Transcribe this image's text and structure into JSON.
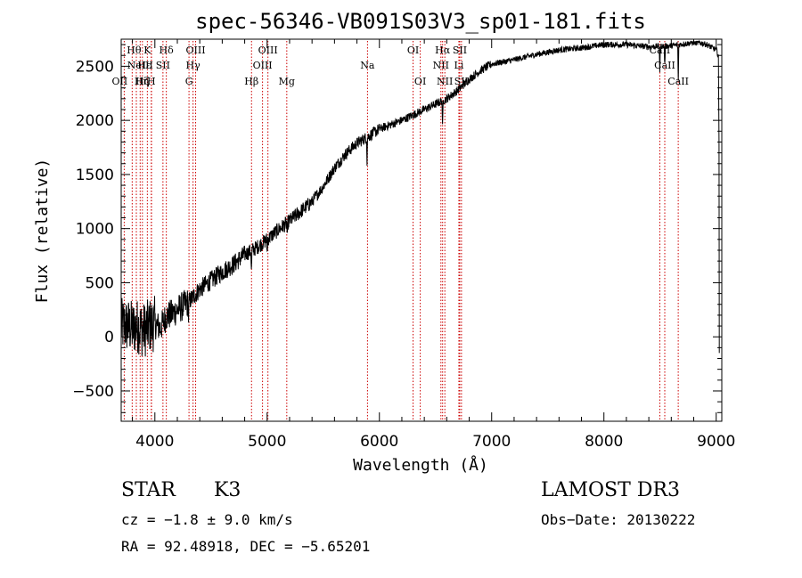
{
  "chart_data": {
    "type": "line",
    "title": "spec-56346-VB091S03V3_sp01-181.fits",
    "xlabel": "Wavelength (Å)",
    "ylabel": "Flux (relative)",
    "xlim": [
      3700,
      9050
    ],
    "ylim": [
      -780,
      2750
    ],
    "xticks": [
      4000,
      5000,
      6000,
      7000,
      8000,
      9000
    ],
    "yticks": [
      -500,
      0,
      500,
      1000,
      1500,
      2000,
      2500
    ],
    "line_color": "#000000",
    "marker_color": "#cc0000",
    "spectrum_anchors": [
      [
        3700,
        100
      ],
      [
        3760,
        100
      ],
      [
        3800,
        80
      ],
      [
        3850,
        100
      ],
      [
        3900,
        60
      ],
      [
        3950,
        100
      ],
      [
        4000,
        120
      ],
      [
        4050,
        80
      ],
      [
        4100,
        190
      ],
      [
        4150,
        210
      ],
      [
        4200,
        250
      ],
      [
        4300,
        320
      ],
      [
        4400,
        440
      ],
      [
        4500,
        520
      ],
      [
        4600,
        600
      ],
      [
        4700,
        670
      ],
      [
        4800,
        760
      ],
      [
        4900,
        820
      ],
      [
        5000,
        900
      ],
      [
        5100,
        990
      ],
      [
        5200,
        1070
      ],
      [
        5300,
        1160
      ],
      [
        5400,
        1250
      ],
      [
        5500,
        1390
      ],
      [
        5600,
        1560
      ],
      [
        5700,
        1690
      ],
      [
        5800,
        1790
      ],
      [
        5900,
        1850
      ],
      [
        6000,
        1920
      ],
      [
        6100,
        1960
      ],
      [
        6200,
        2000
      ],
      [
        6300,
        2050
      ],
      [
        6400,
        2100
      ],
      [
        6500,
        2150
      ],
      [
        6600,
        2200
      ],
      [
        6700,
        2280
      ],
      [
        6800,
        2380
      ],
      [
        6900,
        2460
      ],
      [
        7000,
        2520
      ],
      [
        7200,
        2560
      ],
      [
        7400,
        2610
      ],
      [
        7600,
        2650
      ],
      [
        7800,
        2670
      ],
      [
        8000,
        2700
      ],
      [
        8200,
        2700
      ],
      [
        8400,
        2680
      ],
      [
        8600,
        2690
      ],
      [
        8800,
        2720
      ],
      [
        8900,
        2710
      ],
      [
        9000,
        2650
      ],
      [
        9020,
        2600
      ]
    ],
    "absorption_dips": [
      [
        4300,
        150
      ],
      [
        4860,
        200
      ],
      [
        5000,
        120
      ],
      [
        5180,
        160
      ],
      [
        5890,
        220
      ],
      [
        6563,
        280
      ],
      [
        8498,
        260
      ],
      [
        8542,
        200
      ],
      [
        8662,
        380
      ]
    ],
    "lines": [
      {
        "wavelength": 3727,
        "label": "OII",
        "row": 3,
        "dx": -5
      },
      {
        "wavelength": 3798,
        "label": "Hθ",
        "row": 1,
        "dx": 2
      },
      {
        "wavelength": 3835,
        "label": "Hη",
        "row": 3,
        "dx": 6
      },
      {
        "wavelength": 3869,
        "label": "NeIII",
        "row": 2,
        "dx": 0
      },
      {
        "wavelength": 3889,
        "label": "Hζ",
        "row": 3,
        "dx": 0
      },
      {
        "wavelength": 3933,
        "label": "K",
        "row": 1,
        "dx": 0
      },
      {
        "wavelength": 3968,
        "label": "H",
        "row": 3,
        "dx": 0
      },
      {
        "wavelength": 3970,
        "label": "Hε",
        "row": 2,
        "dx": -8
      },
      {
        "wavelength": 4072,
        "label": "SII",
        "row": 2,
        "dx": 0
      },
      {
        "wavelength": 4102,
        "label": "Hδ",
        "row": 1,
        "dx": 0
      },
      {
        "wavelength": 4304,
        "label": "G",
        "row": 3,
        "dx": 0
      },
      {
        "wavelength": 4340,
        "label": "Hγ",
        "row": 2,
        "dx": 0
      },
      {
        "wavelength": 4363,
        "label": "OIII",
        "row": 1,
        "dx": 0
      },
      {
        "wavelength": 4861,
        "label": "Hβ",
        "row": 3,
        "dx": 0
      },
      {
        "wavelength": 4959,
        "label": "OIII",
        "row": 2,
        "dx": 0
      },
      {
        "wavelength": 5007,
        "label": "OIII",
        "row": 1,
        "dx": 0
      },
      {
        "wavelength": 5175,
        "label": "Mg",
        "row": 3,
        "dx": 0
      },
      {
        "wavelength": 5894,
        "label": "Na",
        "row": 2,
        "dx": 0
      },
      {
        "wavelength": 6300,
        "label": "OI",
        "row": 1,
        "dx": 0
      },
      {
        "wavelength": 6364,
        "label": "OI",
        "row": 3,
        "dx": 0
      },
      {
        "wavelength": 6548,
        "label": "NII",
        "row": 2,
        "dx": 0
      },
      {
        "wavelength": 6563,
        "label": "Hα",
        "row": 1,
        "dx": 0
      },
      {
        "wavelength": 6583,
        "label": "NII",
        "row": 3,
        "dx": 0
      },
      {
        "wavelength": 6708,
        "label": "Li",
        "row": 2,
        "dx": 0
      },
      {
        "wavelength": 6716,
        "label": "SII",
        "row": 1,
        "dx": 0
      },
      {
        "wavelength": 6731,
        "label": "SII",
        "row": 3,
        "dx": 0
      },
      {
        "wavelength": 8498,
        "label": "CaII",
        "row": 1,
        "dx": 0
      },
      {
        "wavelength": 8542,
        "label": "CaII",
        "row": 2,
        "dx": 0
      },
      {
        "wavelength": 8662,
        "label": "CaII",
        "row": 3,
        "dx": 0
      }
    ]
  },
  "info": {
    "class": "STAR",
    "subclass": "K3",
    "cz": "cz = −1.8 ± 9.0 km/s",
    "radec": "RA =  92.48918, DEC =  −5.65201",
    "survey": "LAMOST DR3",
    "obs_date": "Obs−Date: 20130222"
  }
}
